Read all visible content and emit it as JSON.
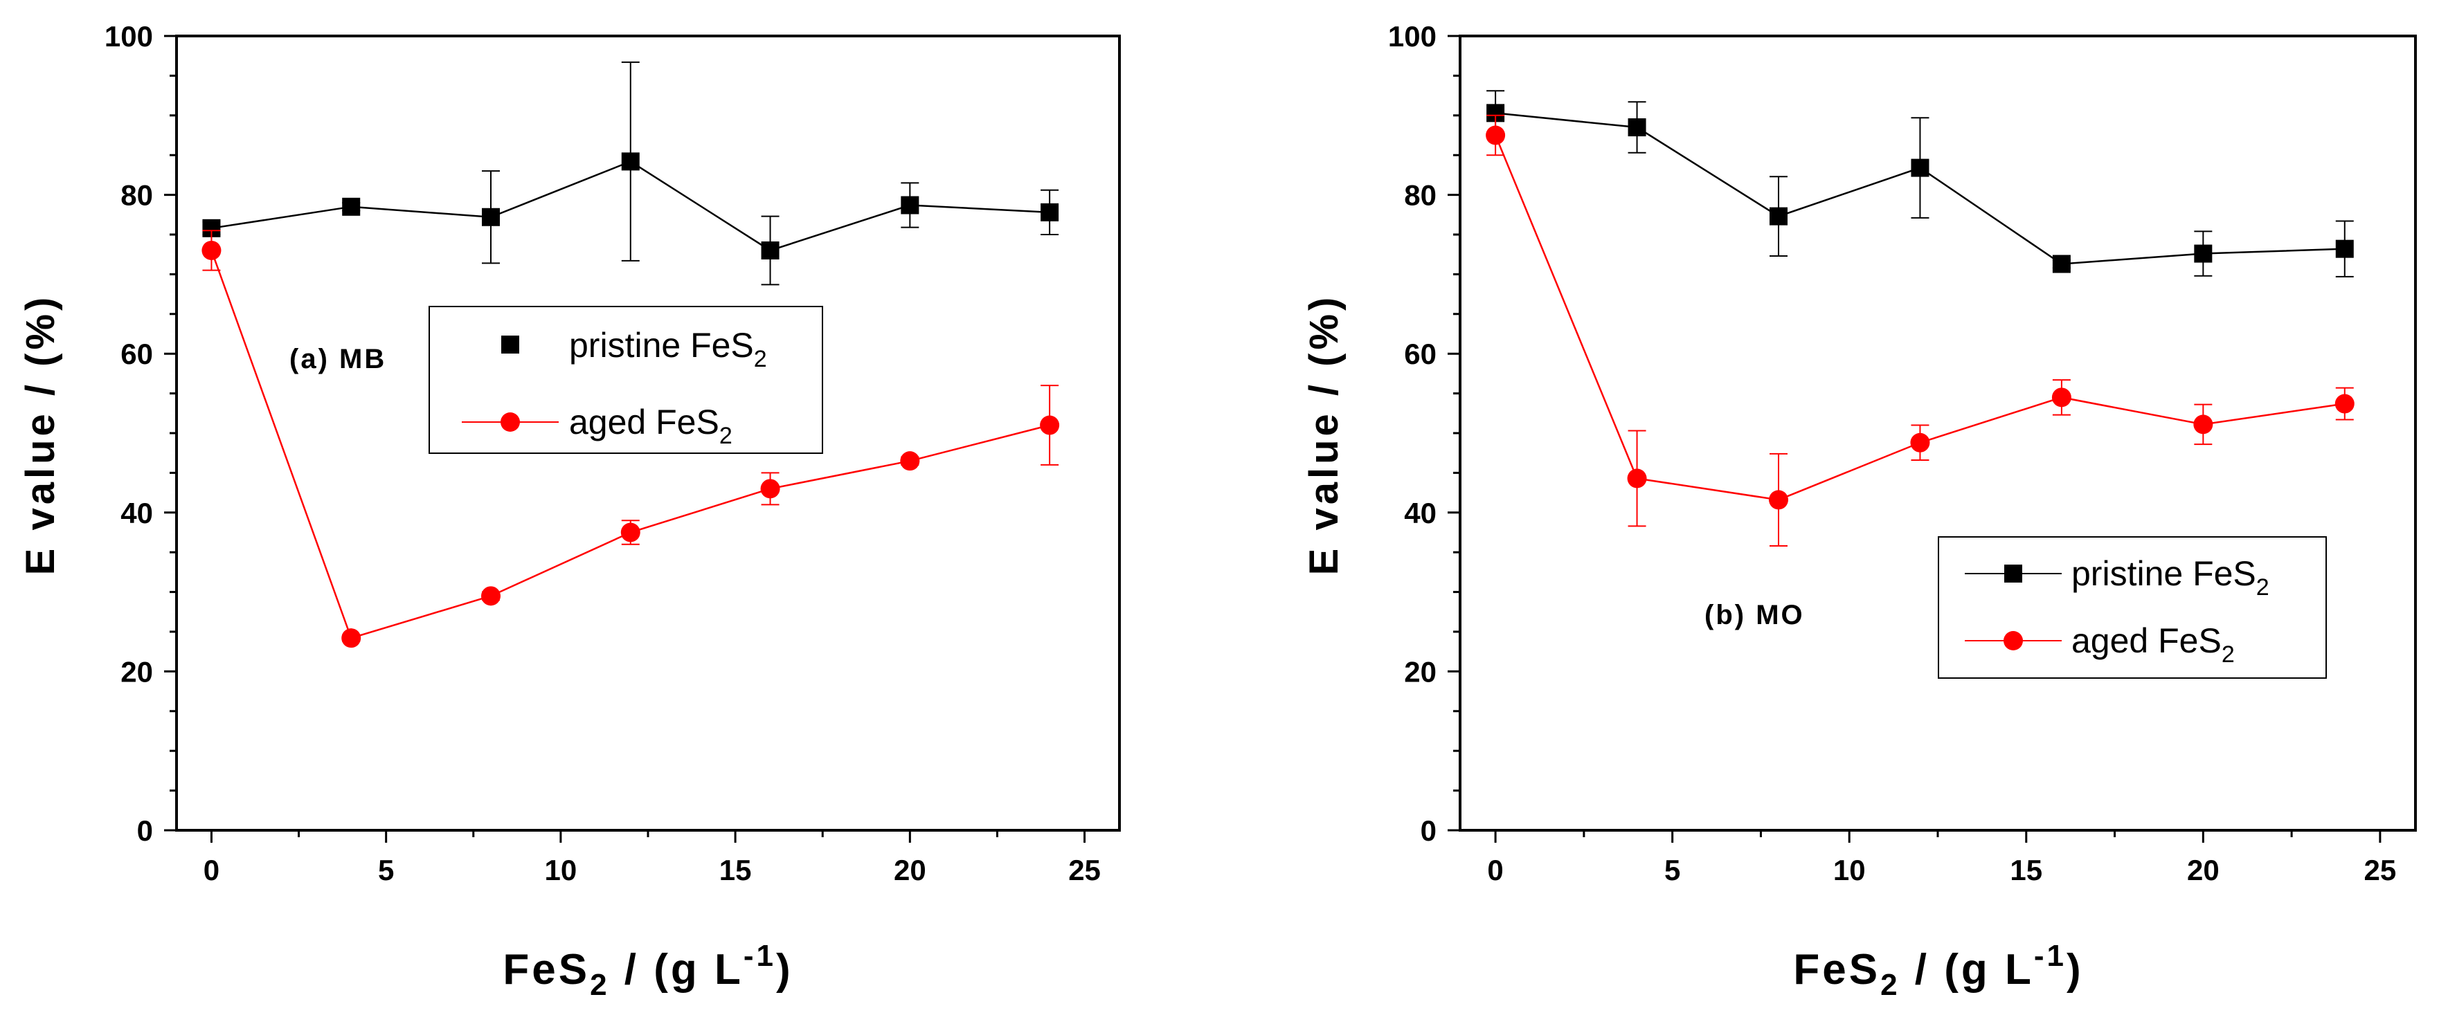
{
  "colors": {
    "pristine": "#000000",
    "aged": "#ff0000"
  },
  "chart_data": [
    {
      "type": "line",
      "annotation": "(a) MB",
      "xlabel_main": "FeS",
      "xlabel_sub": "2",
      "xlabel_rest": " / (g L",
      "xlabel_sup": "-1",
      "xlabel_end": ")",
      "ylabel": "E value / (%)",
      "xlim": [
        -1,
        26
      ],
      "ylim": [
        0,
        100
      ],
      "xticks": [
        0,
        5,
        10,
        15,
        20,
        25
      ],
      "yticks": [
        0,
        20,
        40,
        60,
        80,
        100
      ],
      "xtick_labels": [
        "0",
        "5",
        "10",
        "15",
        "20",
        "25"
      ],
      "ytick_labels": [
        "0",
        "20",
        "40",
        "60",
        "80",
        "100"
      ],
      "legend": {
        "show_lines": false,
        "items": [
          {
            "main": "pristine FeS",
            "sub": "2"
          },
          {
            "main": "aged FeS",
            "sub": "2"
          }
        ]
      },
      "series": [
        {
          "name": "pristine FeS2",
          "marker": "square",
          "x": [
            0,
            4,
            8,
            12,
            16,
            20,
            24
          ],
          "y": [
            75.8,
            78.5,
            77.2,
            84.2,
            73,
            78.7,
            77.8
          ],
          "err": [
            0.8,
            0.5,
            5.8,
            12.5,
            4.3,
            2.8,
            2.8
          ]
        },
        {
          "name": "aged FeS2",
          "marker": "circle",
          "x": [
            0,
            4,
            8,
            12,
            16,
            20,
            24
          ],
          "y": [
            73,
            24.2,
            29.5,
            37.5,
            43,
            46.5,
            51
          ],
          "err": [
            2.5,
            0.4,
            0.5,
            1.5,
            2,
            0.5,
            5
          ]
        }
      ]
    },
    {
      "type": "line",
      "annotation": "(b) MO",
      "xlabel_main": "FeS",
      "xlabel_sub": "2",
      "xlabel_rest": " / (g L",
      "xlabel_sup": "-1",
      "xlabel_end": ")",
      "ylabel": "E value / (%)",
      "xlim": [
        -1,
        26
      ],
      "ylim": [
        0,
        100
      ],
      "xticks": [
        0,
        5,
        10,
        15,
        20,
        25
      ],
      "yticks": [
        0,
        20,
        40,
        60,
        80,
        100
      ],
      "xtick_labels": [
        "0",
        "5",
        "10",
        "15",
        "20",
        "25"
      ],
      "ytick_labels": [
        "0",
        "20",
        "40",
        "60",
        "80",
        "100"
      ],
      "legend": {
        "show_lines": true,
        "items": [
          {
            "main": "pristine FeS",
            "sub": "2"
          },
          {
            "main": "aged FeS",
            "sub": "2"
          }
        ]
      },
      "series": [
        {
          "name": "pristine FeS2",
          "marker": "square",
          "x": [
            0,
            4,
            8,
            12,
            16,
            20,
            24
          ],
          "y": [
            90.3,
            88.5,
            77.3,
            83.4,
            71.3,
            72.6,
            73.2
          ],
          "err": [
            2.8,
            3.2,
            5,
            6.3,
            0.5,
            2.8,
            3.5
          ]
        },
        {
          "name": "aged FeS2",
          "marker": "circle",
          "x": [
            0,
            4,
            8,
            12,
            16,
            20,
            24
          ],
          "y": [
            87.5,
            44.3,
            41.6,
            48.8,
            54.5,
            51.1,
            53.7
          ],
          "err": [
            2.5,
            6,
            5.8,
            2.2,
            2.2,
            2.5,
            2
          ]
        }
      ]
    }
  ]
}
